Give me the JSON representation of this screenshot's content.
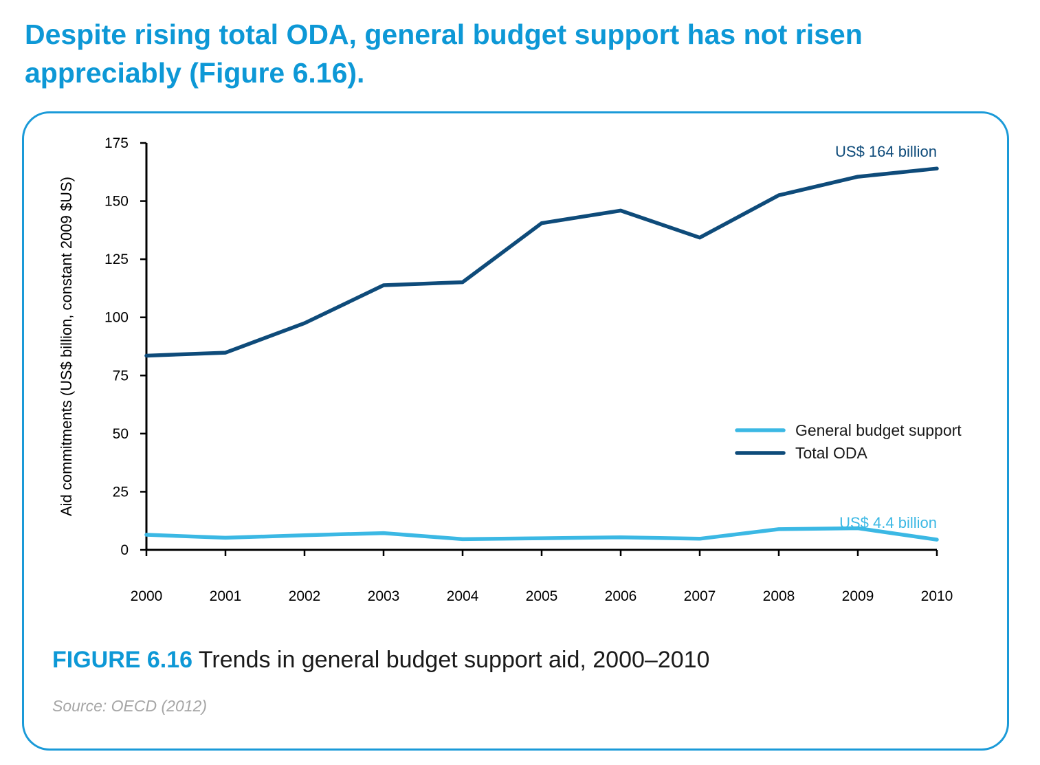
{
  "page": {
    "headline": "Despite rising total ODA, general budget support has not risen appreciably (Figure 6.16).",
    "caption_label": "FIGURE 6.16",
    "caption_text": "Trends in general budget support aid, 2000–2010",
    "source": "Source: OECD (2012)"
  },
  "chart_data": {
    "type": "line",
    "x": [
      "2000",
      "2001",
      "2002",
      "2003",
      "2004",
      "2005",
      "2006",
      "2007",
      "2008",
      "2009",
      "2010"
    ],
    "ylabel": "Aid commitments (US$ billion, constant 2009 $US)",
    "ylim": [
      0,
      175
    ],
    "yticks": [
      0,
      25,
      50,
      75,
      100,
      125,
      150,
      175
    ],
    "grid": false,
    "legend_position": "center-right",
    "series": [
      {
        "name": "General budget support",
        "color": "#3bb8e4",
        "values": [
          6.5,
          5.2,
          6.3,
          7.2,
          4.6,
          5.0,
          5.4,
          4.8,
          8.9,
          9.3,
          4.4
        ],
        "end_label": "US$ 4.4 billion"
      },
      {
        "name": "Total ODA",
        "color": "#0e4b7a",
        "values": [
          83.5,
          84.8,
          97.5,
          113.8,
          115.1,
          140.5,
          145.9,
          134.3,
          152.5,
          160.5,
          164.0
        ],
        "end_label": "US$ 164 billion"
      }
    ]
  }
}
